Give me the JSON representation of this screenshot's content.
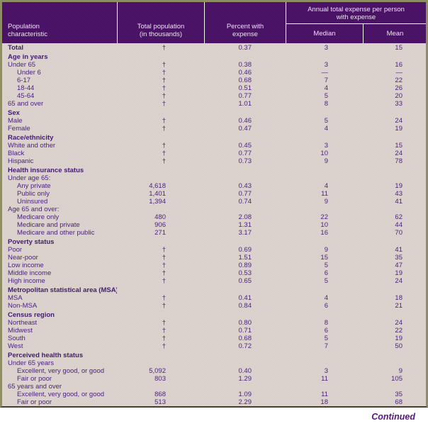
{
  "header": {
    "col1_line1": "Population",
    "col1_line2": "characteristic",
    "col2_line1": "Total population",
    "col2_line2": "(in thousands)",
    "col3_line1": "Percent with",
    "col3_line2": "expense",
    "group_line1": "Annual total expense per person",
    "group_line2": "with expense",
    "sub_median": "Median",
    "sub_mean": "Mean"
  },
  "colors": {
    "header_bg": "#430c5e",
    "body_bg": "#d3c9c4",
    "text_purple": "#4c2180",
    "frame_border": "#8e8d63"
  },
  "footer": {
    "continued": "Continued"
  },
  "chart_data": {
    "type": "table",
    "columns": [
      "Population characteristic",
      "Total population (in thousands)",
      "Percent with expense",
      "Median",
      "Mean"
    ],
    "column_group": "Annual total expense per person with expense"
  },
  "rows": [
    {
      "label": "Total",
      "style": "bold",
      "pop": "†",
      "pct": "0.37",
      "median": "3",
      "mean": "15"
    },
    {
      "label": "Age in years",
      "style": "section",
      "pop": "",
      "pct": "",
      "median": "",
      "mean": ""
    },
    {
      "label": "Under 65",
      "style": "plain",
      "pop": "†",
      "pct": "0.38",
      "median": "3",
      "mean": "16"
    },
    {
      "label": "Under 6",
      "style": "indent",
      "pop": "†",
      "pct": "0.46",
      "median": "—",
      "mean": "—"
    },
    {
      "label": "6-17",
      "style": "indent",
      "pop": "†",
      "pct": "0.68",
      "median": "7",
      "mean": "22"
    },
    {
      "label": "18-44",
      "style": "indent",
      "pop": "†",
      "pct": "0.51",
      "median": "4",
      "mean": "26"
    },
    {
      "label": "45-64",
      "style": "indent",
      "pop": "†",
      "pct": "0.77",
      "median": "5",
      "mean": "20"
    },
    {
      "label": "65 and over",
      "style": "plain",
      "pop": "†",
      "pct": "1.01",
      "median": "8",
      "mean": "33"
    },
    {
      "label": "Sex",
      "style": "section",
      "pop": "",
      "pct": "",
      "median": "",
      "mean": ""
    },
    {
      "label": "Male",
      "style": "plain",
      "pop": "†",
      "pct": "0.46",
      "median": "5",
      "mean": "24"
    },
    {
      "label": "Female",
      "style": "plain",
      "pop": "†",
      "pct": "0.47",
      "median": "4",
      "mean": "19"
    },
    {
      "label": "Race/ethnicity",
      "style": "section",
      "pop": "",
      "pct": "",
      "median": "",
      "mean": ""
    },
    {
      "label": "White and other",
      "style": "plain",
      "pop": "†",
      "pct": "0.45",
      "median": "3",
      "mean": "15"
    },
    {
      "label": "Black",
      "style": "plain",
      "pop": "†",
      "pct": "0.77",
      "median": "10",
      "mean": "24"
    },
    {
      "label": "Hispanic",
      "style": "plain",
      "pop": "†",
      "pct": "0.73",
      "median": "9",
      "mean": "78"
    },
    {
      "label": "Health insurance status",
      "style": "section",
      "pop": "",
      "pct": "",
      "median": "",
      "mean": ""
    },
    {
      "label": "Under age 65:",
      "style": "plain",
      "pop": "",
      "pct": "",
      "median": "",
      "mean": ""
    },
    {
      "label": "Any private",
      "style": "indent",
      "pop": "4,618",
      "pct": "0.43",
      "median": "4",
      "mean": "19"
    },
    {
      "label": "Public only",
      "style": "indent",
      "pop": "1,401",
      "pct": "0.77",
      "median": "11",
      "mean": "43"
    },
    {
      "label": "Uninsured",
      "style": "indent",
      "pop": "1,394",
      "pct": "0.74",
      "median": "9",
      "mean": "41"
    },
    {
      "label": "Age 65 and over:",
      "style": "plain",
      "pop": "",
      "pct": "",
      "median": "",
      "mean": ""
    },
    {
      "label": "Medicare only",
      "style": "indent",
      "pop": "480",
      "pct": "2.08",
      "median": "22",
      "mean": "62"
    },
    {
      "label": "Medicare and private",
      "style": "indent",
      "pop": "906",
      "pct": "1.31",
      "median": "10",
      "mean": "44"
    },
    {
      "label": "Medicare and other public",
      "style": "indent",
      "pop": "271",
      "pct": "3.17",
      "median": "16",
      "mean": "70"
    },
    {
      "label": "Poverty status",
      "style": "section",
      "pop": "",
      "pct": "",
      "median": "",
      "mean": ""
    },
    {
      "label": "Poor",
      "style": "plain",
      "pop": "†",
      "pct": "0.69",
      "median": "9",
      "mean": "41"
    },
    {
      "label": "Near-poor",
      "style": "plain",
      "pop": "†",
      "pct": "1.51",
      "median": "15",
      "mean": "35"
    },
    {
      "label": "Low income",
      "style": "plain",
      "pop": "†",
      "pct": "0.89",
      "median": "5",
      "mean": "47"
    },
    {
      "label": "Middle income",
      "style": "plain",
      "pop": "†",
      "pct": "0.53",
      "median": "6",
      "mean": "19"
    },
    {
      "label": "High income",
      "style": "plain",
      "pop": "†",
      "pct": "0.65",
      "median": "5",
      "mean": "24"
    },
    {
      "label": "Metropolitan statistical area (MSA)",
      "style": "section",
      "pop": "",
      "pct": "",
      "median": "",
      "mean": ""
    },
    {
      "label": "MSA",
      "style": "plain",
      "pop": "†",
      "pct": "0.41",
      "median": "4",
      "mean": "18"
    },
    {
      "label": "Non-MSA",
      "style": "plain",
      "pop": "†",
      "pct": "0.84",
      "median": "6",
      "mean": "21"
    },
    {
      "label": "Census region",
      "style": "section",
      "pop": "",
      "pct": "",
      "median": "",
      "mean": ""
    },
    {
      "label": "Northeast",
      "style": "plain",
      "pop": "†",
      "pct": "0.80",
      "median": "8",
      "mean": "24"
    },
    {
      "label": "Midwest",
      "style": "plain",
      "pop": "†",
      "pct": "0.71",
      "median": "6",
      "mean": "22"
    },
    {
      "label": "South",
      "style": "plain",
      "pop": "†",
      "pct": "0.68",
      "median": "5",
      "mean": "19"
    },
    {
      "label": "West",
      "style": "plain",
      "pop": "†",
      "pct": "0.72",
      "median": "7",
      "mean": "50"
    },
    {
      "label": "Perceived health status",
      "style": "section",
      "pop": "",
      "pct": "",
      "median": "",
      "mean": ""
    },
    {
      "label": "Under 65 years",
      "style": "plain",
      "pop": "",
      "pct": "",
      "median": "",
      "mean": ""
    },
    {
      "label": "Excellent, very good, or good",
      "style": "indent",
      "pop": "5,092",
      "pct": "0.40",
      "median": "3",
      "mean": "9"
    },
    {
      "label": "Fair or poor",
      "style": "indent",
      "pop": "803",
      "pct": "1.29",
      "median": "11",
      "mean": "105"
    },
    {
      "label": "65 years and over",
      "style": "plain",
      "pop": "",
      "pct": "",
      "median": "",
      "mean": ""
    },
    {
      "label": "Excellent, very good, or good",
      "style": "indent",
      "pop": "868",
      "pct": "1.09",
      "median": "11",
      "mean": "35"
    },
    {
      "label": "Fair or poor",
      "style": "indent",
      "pop": "513",
      "pct": "2.29",
      "median": "18",
      "mean": "68"
    }
  ]
}
